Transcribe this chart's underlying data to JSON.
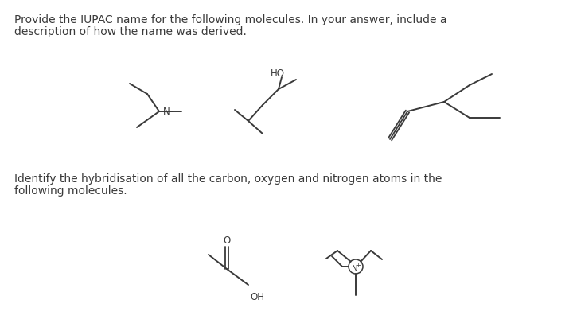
{
  "bg_color": "#ffffff",
  "text_color": "#3a3a3a",
  "line_color": "#3a3a3a",
  "top_text_line1": "Provide the IUPAC name for the following molecules. In your answer, include a",
  "top_text_line2": "description of how the name was derived.",
  "bottom_text_line1": "Identify the hybridisation of all the carbon, oxygen and nitrogen atoms in the",
  "bottom_text_line2": "following molecules.",
  "font_size": 10.0,
  "mol_font_size": 8.5,
  "fig_width": 7.2,
  "fig_height": 4.21,
  "dpi": 100
}
